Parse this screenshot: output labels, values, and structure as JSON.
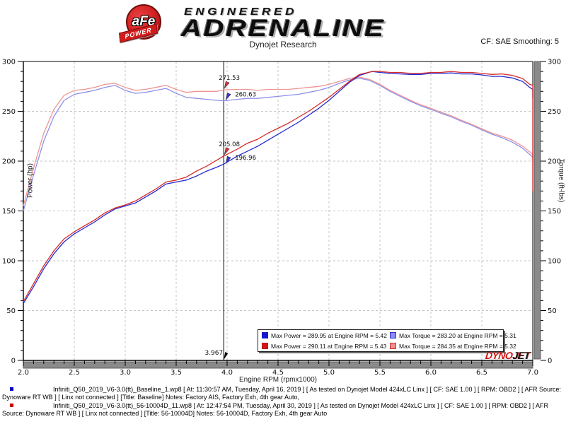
{
  "header": {
    "afe": "aFe",
    "power": "POWER",
    "engineered": "ENGINEERED",
    "adrenaline": "ADRENALINE",
    "subtitle": "Dynojet Research",
    "smoothing": "CF: SAE Smoothing: 5"
  },
  "chart_data": {
    "type": "line",
    "xlabel": "Engine RPM (rpmx1000)",
    "ylabel_left": "Power (hp)",
    "ylabel_right": "Torque (ft-lbs)",
    "xlim": [
      2.0,
      7.0
    ],
    "ylim_left": [
      0,
      300
    ],
    "ylim_right": [
      0,
      300
    ],
    "x_major_step": 0.5,
    "x_minor_step": 0.1,
    "y_major_step": 50,
    "y_minor_step": 10,
    "grid": "dashed",
    "cursor": {
      "x": 3.967,
      "x_label": "3.967",
      "labels": [
        {
          "text": "271.53",
          "value": 271.5,
          "color": "#d23636",
          "side": "left"
        },
        {
          "text": "260.63",
          "value": 260.6,
          "color": "#3636d2",
          "side": "right"
        },
        {
          "text": "205.08",
          "value": 205.1,
          "color": "#d23636",
          "side": "left"
        },
        {
          "text": "196.96",
          "value": 197.0,
          "color": "#3636d2",
          "side": "right"
        }
      ]
    },
    "series": [
      {
        "name": "baseline-torque",
        "unit": "ft-lbs",
        "color": "#9090ea",
        "points": [
          [
            2.0,
            150
          ],
          [
            2.1,
            186
          ],
          [
            2.2,
            220
          ],
          [
            2.3,
            245
          ],
          [
            2.4,
            261
          ],
          [
            2.5,
            267
          ],
          [
            2.6,
            269
          ],
          [
            2.7,
            271
          ],
          [
            2.8,
            274
          ],
          [
            2.9,
            276
          ],
          [
            3.0,
            271
          ],
          [
            3.1,
            268
          ],
          [
            3.2,
            269
          ],
          [
            3.3,
            271
          ],
          [
            3.4,
            273
          ],
          [
            3.5,
            268
          ],
          [
            3.6,
            264
          ],
          [
            3.7,
            263
          ],
          [
            3.8,
            262
          ],
          [
            3.9,
            261
          ],
          [
            3.967,
            260.6
          ],
          [
            4.1,
            262
          ],
          [
            4.2,
            263
          ],
          [
            4.3,
            263
          ],
          [
            4.4,
            264
          ],
          [
            4.5,
            265
          ],
          [
            4.6,
            266
          ],
          [
            4.7,
            267
          ],
          [
            4.8,
            269
          ],
          [
            4.9,
            271
          ],
          [
            5.0,
            274
          ],
          [
            5.1,
            278
          ],
          [
            5.2,
            281.5
          ],
          [
            5.3,
            283.2
          ],
          [
            5.4,
            281
          ],
          [
            5.5,
            276
          ],
          [
            5.6,
            270
          ],
          [
            5.7,
            265
          ],
          [
            5.8,
            260
          ],
          [
            5.9,
            255.5
          ],
          [
            6.0,
            252
          ],
          [
            6.1,
            248
          ],
          [
            6.2,
            244.5
          ],
          [
            6.3,
            240
          ],
          [
            6.4,
            236
          ],
          [
            6.5,
            231.5
          ],
          [
            6.6,
            227
          ],
          [
            6.7,
            223.5
          ],
          [
            6.8,
            219
          ],
          [
            6.9,
            213
          ],
          [
            7.0,
            204
          ],
          [
            7.0,
            202
          ]
        ]
      },
      {
        "name": "56-10004D-torque",
        "unit": "ft-lbs",
        "color": "#ee9494",
        "points": [
          [
            2.0,
            155
          ],
          [
            2.1,
            193
          ],
          [
            2.2,
            228
          ],
          [
            2.3,
            252
          ],
          [
            2.4,
            266
          ],
          [
            2.5,
            271
          ],
          [
            2.6,
            272
          ],
          [
            2.7,
            274
          ],
          [
            2.8,
            277
          ],
          [
            2.9,
            278
          ],
          [
            3.0,
            274
          ],
          [
            3.1,
            271
          ],
          [
            3.2,
            272
          ],
          [
            3.3,
            274
          ],
          [
            3.4,
            276
          ],
          [
            3.5,
            272
          ],
          [
            3.6,
            269
          ],
          [
            3.7,
            270
          ],
          [
            3.8,
            270
          ],
          [
            3.9,
            270
          ],
          [
            3.967,
            271.5
          ],
          [
            4.1,
            272
          ],
          [
            4.2,
            272
          ],
          [
            4.3,
            271
          ],
          [
            4.4,
            272
          ],
          [
            4.5,
            272
          ],
          [
            4.6,
            272
          ],
          [
            4.7,
            273
          ],
          [
            4.8,
            274
          ],
          [
            4.9,
            275
          ],
          [
            5.0,
            277
          ],
          [
            5.1,
            280
          ],
          [
            5.2,
            283
          ],
          [
            5.3,
            284.4
          ],
          [
            5.4,
            282
          ],
          [
            5.5,
            277
          ],
          [
            5.6,
            271
          ],
          [
            5.7,
            266
          ],
          [
            5.8,
            261
          ],
          [
            5.9,
            256.5
          ],
          [
            6.0,
            253
          ],
          [
            6.1,
            249
          ],
          [
            6.2,
            245.5
          ],
          [
            6.3,
            241
          ],
          [
            6.4,
            237
          ],
          [
            6.5,
            232.5
          ],
          [
            6.6,
            228
          ],
          [
            6.7,
            225
          ],
          [
            6.8,
            221
          ],
          [
            6.9,
            215
          ],
          [
            7.0,
            207
          ],
          [
            7.0,
            199
          ]
        ]
      },
      {
        "name": "baseline-power",
        "unit": "hp",
        "color": "#2828cf",
        "points": [
          [
            2.0,
            57
          ],
          [
            2.1,
            74
          ],
          [
            2.2,
            92
          ],
          [
            2.3,
            107
          ],
          [
            2.4,
            119
          ],
          [
            2.5,
            127
          ],
          [
            2.6,
            133
          ],
          [
            2.7,
            139
          ],
          [
            2.8,
            146
          ],
          [
            2.9,
            152
          ],
          [
            3.0,
            155
          ],
          [
            3.1,
            158
          ],
          [
            3.2,
            164
          ],
          [
            3.3,
            170
          ],
          [
            3.4,
            177
          ],
          [
            3.5,
            179
          ],
          [
            3.6,
            181
          ],
          [
            3.7,
            185
          ],
          [
            3.8,
            190
          ],
          [
            3.9,
            194
          ],
          [
            3.967,
            197
          ],
          [
            4.1,
            205
          ],
          [
            4.2,
            210
          ],
          [
            4.3,
            215
          ],
          [
            4.4,
            221
          ],
          [
            4.5,
            227
          ],
          [
            4.6,
            233
          ],
          [
            4.7,
            239
          ],
          [
            4.8,
            246
          ],
          [
            4.9,
            253
          ],
          [
            5.0,
            261
          ],
          [
            5.1,
            270
          ],
          [
            5.2,
            279
          ],
          [
            5.3,
            286
          ],
          [
            5.42,
            290
          ],
          [
            5.5,
            289
          ],
          [
            5.6,
            288
          ],
          [
            5.7,
            287.5
          ],
          [
            5.8,
            287
          ],
          [
            5.9,
            287
          ],
          [
            6.0,
            288
          ],
          [
            6.1,
            288
          ],
          [
            6.2,
            288.5
          ],
          [
            6.3,
            287.5
          ],
          [
            6.4,
            287.5
          ],
          [
            6.5,
            286.5
          ],
          [
            6.6,
            285
          ],
          [
            6.7,
            285
          ],
          [
            6.8,
            283.5
          ],
          [
            6.9,
            280
          ],
          [
            6.97,
            274
          ],
          [
            7.0,
            272
          ],
          [
            7.0,
            263
          ]
        ]
      },
      {
        "name": "56-10004D-power",
        "unit": "hp",
        "color": "#d42a2a",
        "points": [
          [
            2.0,
            59
          ],
          [
            2.1,
            77
          ],
          [
            2.2,
            95
          ],
          [
            2.3,
            110
          ],
          [
            2.4,
            122
          ],
          [
            2.5,
            129
          ],
          [
            2.6,
            135
          ],
          [
            2.7,
            141
          ],
          [
            2.8,
            148
          ],
          [
            2.9,
            153
          ],
          [
            3.0,
            156
          ],
          [
            3.1,
            160
          ],
          [
            3.2,
            166
          ],
          [
            3.3,
            172
          ],
          [
            3.4,
            179
          ],
          [
            3.5,
            181
          ],
          [
            3.6,
            184
          ],
          [
            3.7,
            190
          ],
          [
            3.8,
            195
          ],
          [
            3.9,
            201
          ],
          [
            3.967,
            205.1
          ],
          [
            4.1,
            212
          ],
          [
            4.2,
            218
          ],
          [
            4.3,
            222
          ],
          [
            4.4,
            228
          ],
          [
            4.5,
            233
          ],
          [
            4.6,
            238
          ],
          [
            4.7,
            244
          ],
          [
            4.8,
            250
          ],
          [
            4.9,
            257
          ],
          [
            5.0,
            264
          ],
          [
            5.1,
            272
          ],
          [
            5.2,
            280
          ],
          [
            5.3,
            287
          ],
          [
            5.43,
            290.1
          ],
          [
            5.5,
            290
          ],
          [
            5.6,
            289
          ],
          [
            5.7,
            289
          ],
          [
            5.8,
            288
          ],
          [
            5.9,
            288
          ],
          [
            6.0,
            289
          ],
          [
            6.1,
            289
          ],
          [
            6.2,
            290
          ],
          [
            6.3,
            289
          ],
          [
            6.4,
            289
          ],
          [
            6.5,
            288
          ],
          [
            6.6,
            287
          ],
          [
            6.7,
            287.5
          ],
          [
            6.8,
            286
          ],
          [
            6.9,
            283
          ],
          [
            6.97,
            277
          ],
          [
            7.0,
            276
          ],
          [
            7.0,
            170
          ]
        ]
      }
    ],
    "legend": {
      "items": [
        {
          "text": "Max Power = 289.95 at Engine RPM = 5.42",
          "fill": "#1414dc",
          "border": "#2020b0"
        },
        {
          "text": "Max Torque = 283.20 at Engine RPM = 5.31",
          "fill": "#8c8cf4",
          "border": "#3030c0"
        },
        {
          "text": "Max Power = 290.11 at Engine RPM = 5.43",
          "fill": "#dc1414",
          "border": "#b02020"
        },
        {
          "text": "Max Torque = 284.35 at Engine RPM = 5.32",
          "fill": "#f49090",
          "border": "#c03030"
        }
      ]
    }
  },
  "branding": {
    "dyno": "DYNO",
    "jet": "JET"
  },
  "footer": {
    "runs": [
      {
        "color": "#0000cc",
        "text": "Infiniti_Q50_2019_V6-3.0(tt)_Baseline_1.wp8 [ At: 11:30:57 AM, Tuesday, April 16, 2019 ] [ As tested on Dynojet Model 424xLC Linx ] [ CF: SAE 1.00 ] [ RPM: OBD2 ] [ AFR Source: Dynoware RT WB ] [ Linx not connected ] [Title: Baseline]  Notes: Factory AIS, Factory Exh, 4th gear Auto,"
      },
      {
        "color": "#cc0000",
        "text": "Infiniti_Q50_2019_V6-3.0(tt)_56-10004D_11.wp8 [ At: 12:47:54 PM, Tuesday, April 30, 2019 ] [ As tested on Dynojet Model 424xLC Linx ] [ CF: SAE 1.00 ] [ RPM: OBD2 ] [ AFR Source: Dynoware RT WB ] [ Linx not connected ] [Title: 56-10004D]  Notes: 56-10004D, Factory Exh, 4th gear Auto"
      }
    ]
  }
}
